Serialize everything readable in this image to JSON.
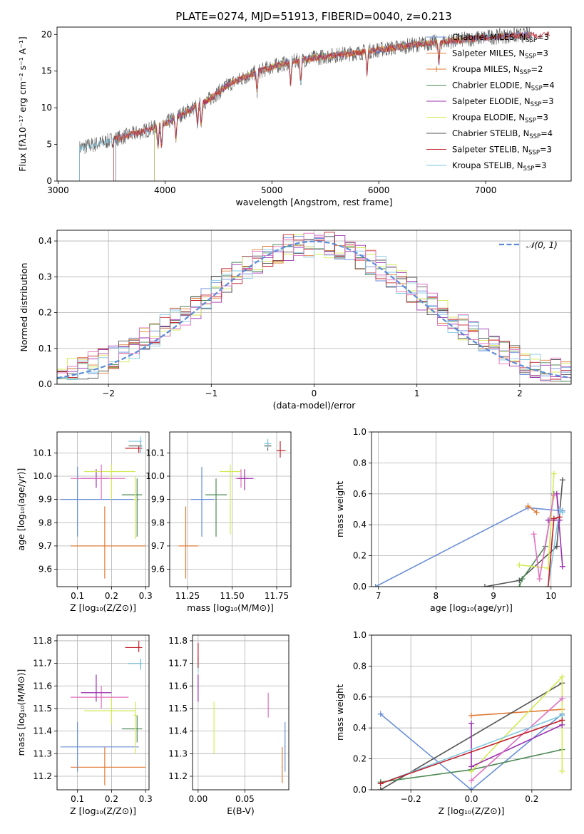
{
  "figure_title": "PLATE=0274, MJD=51913, FIBERID=0040, z=0.213",
  "colors": {
    "chabrier_miles": "#6a8fd8",
    "salpeter_miles": "#e07a35",
    "kroupa_miles": "#e07a35",
    "chabrier_elodie": "#4e8a55",
    "salpeter_elodie": "#9a30b0",
    "kroupa_elodie": "#d4ea55",
    "chabrier_stelib": "#555555",
    "salpeter_stelib": "#c0202a",
    "kroupa_stelib": "#80c8e0",
    "extra_pink": "#e070c0",
    "normal_curve": "#5b8bd8"
  },
  "chart_data": [
    {
      "id": "spectrum",
      "type": "line",
      "title": "PLATE=0274, MJD=51913, FIBERID=0040, z=0.213",
      "xlabel": "wavelength [Angstrom, rest frame]",
      "ylabel": "Flux [fλ10⁻¹⁷ erg cm⁻² s⁻¹ A⁻¹]",
      "xlim": [
        2990,
        7800
      ],
      "ylim": [
        0,
        21
      ],
      "xticks": [
        "3000",
        "4000",
        "5000",
        "6000",
        "7000"
      ],
      "yticks": [
        "0",
        "5",
        "10",
        "15",
        "20"
      ],
      "legend_position": "top-right",
      "legend": [
        "Chabrier MILES, N_SSP=3",
        "Salpeter MILES, N_SSP=3",
        "Kroupa MILES, N_SSP=2",
        "Chabrier ELODIE, N_SSP=4",
        "Salpeter ELODIE, N_SSP=3",
        "Kroupa ELODIE, N_SSP=3",
        "Chabrier STELIB, N_SSP=4",
        "Salpeter STELIB, N_SSP=3",
        "Kroupa STELIB, N_SSP=3"
      ],
      "x_continuum": [
        3200,
        3400,
        3600,
        3800,
        4000,
        4200,
        4400,
        4600,
        4800,
        5000,
        5200,
        5400,
        5600,
        5800,
        6000,
        6200,
        6400,
        6600,
        6800,
        7000,
        7200,
        7400,
        7600
      ],
      "y_continuum": [
        4.5,
        5.2,
        6.0,
        6.8,
        7.8,
        9.5,
        11.0,
        13.2,
        14.5,
        15.6,
        16.3,
        16.8,
        17.2,
        17.5,
        17.9,
        18.3,
        18.7,
        19.0,
        19.3,
        19.6,
        19.8,
        19.9,
        20.0
      ]
    },
    {
      "id": "residuals",
      "type": "bar",
      "xlabel": "(data-model)/error",
      "ylabel": "Normed distribution",
      "xlim": [
        -2.5,
        2.5
      ],
      "ylim": [
        0,
        0.43
      ],
      "xticks": [
        "−2",
        "−1",
        "0",
        "1",
        "2"
      ],
      "yticks": [
        "0.0",
        "0.1",
        "0.2",
        "0.3",
        "0.4"
      ],
      "legend": [
        "𝒩(0, 1)"
      ],
      "legend_position": "top-right",
      "bins": [
        -2.5,
        -2.4,
        -2.3,
        -2.2,
        -2.1,
        -2.0,
        -1.9,
        -1.8,
        -1.7,
        -1.6,
        -1.5,
        -1.4,
        -1.3,
        -1.2,
        -1.1,
        -1.0,
        -0.9,
        -0.8,
        -0.7,
        -0.6,
        -0.5,
        -0.4,
        -0.3,
        -0.2,
        -0.1,
        0.0,
        0.1,
        0.2,
        0.3,
        0.4,
        0.5,
        0.6,
        0.7,
        0.8,
        0.9,
        1.0,
        1.1,
        1.2,
        1.3,
        1.4,
        1.5,
        1.6,
        1.7,
        1.8,
        1.9,
        2.0,
        2.1,
        2.2,
        2.3,
        2.4
      ]
    },
    {
      "id": "age_vs_z",
      "type": "scatter",
      "xlabel": "Z [log₁₀(Z/Z⊙)]",
      "ylabel": "age  [log₁₀(age/yr)]",
      "xlim": [
        0.04,
        0.31
      ],
      "ylim": [
        9.525,
        10.19
      ],
      "xticks": [
        "0.1",
        "0.2",
        "0.3"
      ],
      "yticks": [
        "9.6",
        "9.7",
        "9.8",
        "9.9",
        "10.0",
        "10.1"
      ],
      "points": [
        {
          "x": 0.18,
          "y": 9.7,
          "xerr": [
            0.08,
            0.3
          ],
          "yerr": [
            9.56,
            9.87
          ],
          "c": "salpeter_miles"
        },
        {
          "x": 0.1,
          "y": 9.9,
          "xerr": [
            0.05,
            0.28
          ],
          "yerr": [
            9.74,
            10.04
          ],
          "c": "chabrier_miles"
        },
        {
          "x": 0.155,
          "y": 9.99,
          "xerr": [
            0.11,
            0.19
          ],
          "yerr": [
            9.95,
            10.03
          ],
          "c": "salpeter_elodie"
        },
        {
          "x": 0.2,
          "y": 10.02,
          "xerr": [
            0.12,
            0.27
          ],
          "yerr": [
            9.9,
            10.05
          ],
          "c": "kroupa_elodie"
        },
        {
          "x": 0.17,
          "y": 9.99,
          "xerr": [
            0.08,
            0.24
          ],
          "yerr": [
            9.9,
            10.05
          ],
          "c": "extra_pink"
        },
        {
          "x": 0.275,
          "y": 9.92,
          "xerr": [
            0.23,
            0.29
          ],
          "yerr": [
            9.74,
            9.99
          ],
          "c": "chabrier_elodie"
        },
        {
          "x": 0.27,
          "y": 9.9,
          "xerr": [
            0.265,
            0.275
          ],
          "yerr": [
            9.73,
            10.0
          ],
          "c": "kroupa_elodie"
        },
        {
          "x": 0.28,
          "y": 10.12,
          "xerr": [
            0.24,
            0.29
          ],
          "yerr": [
            10.1,
            10.13
          ],
          "c": "salpeter_stelib"
        },
        {
          "x": 0.285,
          "y": 10.13,
          "xerr": [
            0.25,
            0.29
          ],
          "yerr": [
            10.1,
            10.15
          ],
          "c": "chabrier_stelib"
        },
        {
          "x": 0.285,
          "y": 10.15,
          "xerr": [
            0.25,
            0.29
          ],
          "yerr": [
            10.1,
            10.17
          ],
          "c": "kroupa_stelib"
        }
      ]
    },
    {
      "id": "age_vs_mass",
      "type": "scatter",
      "xlabel": "mass [log₁₀(M/M⊙)]",
      "xlim": [
        11.15,
        11.83
      ],
      "ylim": [
        9.525,
        10.19
      ],
      "xticks": [
        "11.25",
        "11.50",
        "11.75"
      ],
      "yticks": [
        "9.6",
        "9.7",
        "9.8",
        "9.9",
        "10.0",
        "10.1"
      ],
      "points": [
        {
          "x": 11.24,
          "y": 9.7,
          "xerr": [
            11.2,
            11.31
          ],
          "yerr": [
            9.56,
            9.87
          ],
          "c": "salpeter_miles"
        },
        {
          "x": 11.33,
          "y": 9.9,
          "xerr": [
            11.27,
            11.4
          ],
          "yerr": [
            9.74,
            10.04
          ],
          "c": "chabrier_miles"
        },
        {
          "x": 11.41,
          "y": 9.92,
          "xerr": [
            11.35,
            11.47
          ],
          "yerr": [
            9.74,
            9.99
          ],
          "c": "chabrier_elodie"
        },
        {
          "x": 11.49,
          "y": 10.02,
          "xerr": [
            11.43,
            11.55
          ],
          "yerr": [
            9.75,
            10.05
          ],
          "c": "kroupa_elodie"
        },
        {
          "x": 11.55,
          "y": 9.99,
          "xerr": [
            11.52,
            11.59
          ],
          "yerr": [
            9.95,
            10.03
          ],
          "c": "extra_pink"
        },
        {
          "x": 11.57,
          "y": 9.99,
          "xerr": [
            11.53,
            11.62
          ],
          "yerr": [
            9.94,
            10.03
          ],
          "c": "salpeter_elodie"
        },
        {
          "x": 11.7,
          "y": 10.13,
          "xerr": [
            11.68,
            11.72
          ],
          "yerr": [
            10.11,
            10.15
          ],
          "c": "chabrier_stelib"
        },
        {
          "x": 11.7,
          "y": 10.14,
          "xerr": [
            11.68,
            11.72
          ],
          "yerr": [
            10.12,
            10.16
          ],
          "c": "kroupa_stelib"
        },
        {
          "x": 11.77,
          "y": 10.11,
          "xerr": [
            11.75,
            11.8
          ],
          "yerr": [
            10.08,
            10.15
          ],
          "c": "salpeter_stelib"
        }
      ]
    },
    {
      "id": "weight_vs_age",
      "type": "line",
      "xlabel": "age  [log₁₀(age/yr)]",
      "ylabel": "mass weight",
      "xlim": [
        6.88,
        10.35
      ],
      "ylim": [
        0,
        1
      ],
      "xticks": [
        "7",
        "8",
        "9",
        "10"
      ],
      "yticks": [
        "0.0",
        "0.2",
        "0.4",
        "0.6",
        "0.8",
        "1.0"
      ],
      "series": [
        {
          "c": "chabrier_miles",
          "x": [
            6.95,
            9.6,
            10.2
          ],
          "y": [
            0.0,
            0.51,
            0.49
          ]
        },
        {
          "c": "salpeter_miles",
          "x": [
            9.6,
            9.75
          ],
          "y": [
            0.52,
            0.48
          ]
        },
        {
          "c": "chabrier_stelib",
          "x": [
            8.85,
            9.45,
            10.1,
            10.2
          ],
          "y": [
            0.0,
            0.04,
            0.26,
            0.69
          ]
        },
        {
          "c": "chabrier_elodie",
          "x": [
            9.45,
            9.5,
            9.9,
            10.05
          ],
          "y": [
            0.0,
            0.05,
            0.26,
            0.6
          ]
        },
        {
          "c": "kroupa_elodie",
          "x": [
            9.45,
            9.95,
            10.05
          ],
          "y": [
            0.14,
            0.12,
            0.73
          ]
        },
        {
          "c": "salpeter_elodie",
          "x": [
            9.95,
            10.15,
            10.1,
            10.2
          ],
          "y": [
            0.43,
            0.43,
            0.6,
            0.13
          ]
        },
        {
          "c": "extra_pink",
          "x": [
            9.7,
            9.8,
            10.05
          ],
          "y": [
            0.34,
            0.05,
            0.59
          ]
        },
        {
          "c": "kroupa_stelib",
          "x": [
            9.95,
            10.15,
            10.2
          ],
          "y": [
            0.0,
            0.5,
            0.48
          ]
        },
        {
          "c": "salpeter_stelib",
          "x": [
            9.95,
            10.05,
            10.15
          ],
          "y": [
            0.0,
            0.44,
            0.45
          ]
        }
      ]
    },
    {
      "id": "mass_vs_z",
      "type": "scatter",
      "xlabel": "Z [log₁₀(Z/Z⊙)]",
      "ylabel": "mass [log₁₀(M/M⊙)]",
      "xlim": [
        0.04,
        0.31
      ],
      "ylim": [
        11.14,
        11.825
      ],
      "xticks": [
        "0.1",
        "0.2",
        "0.3"
      ],
      "yticks": [
        "11.2",
        "11.3",
        "11.4",
        "11.5",
        "11.6",
        "11.7",
        "11.8"
      ],
      "points": [
        {
          "x": 0.18,
          "y": 11.24,
          "xerr": [
            0.08,
            0.3
          ],
          "yerr": [
            11.16,
            11.33
          ],
          "c": "salpeter_miles"
        },
        {
          "x": 0.1,
          "y": 11.33,
          "xerr": [
            0.05,
            0.28
          ],
          "yerr": [
            11.22,
            11.44
          ],
          "c": "chabrier_miles"
        },
        {
          "x": 0.2,
          "y": 11.49,
          "xerr": [
            0.12,
            0.27
          ],
          "yerr": [
            11.43,
            11.55
          ],
          "c": "kroupa_elodie"
        },
        {
          "x": 0.17,
          "y": 11.55,
          "xerr": [
            0.08,
            0.25
          ],
          "yerr": [
            11.5,
            11.6
          ],
          "c": "extra_pink"
        },
        {
          "x": 0.155,
          "y": 11.57,
          "xerr": [
            0.11,
            0.2
          ],
          "yerr": [
            11.53,
            11.65
          ],
          "c": "salpeter_elodie"
        },
        {
          "x": 0.275,
          "y": 11.41,
          "xerr": [
            0.23,
            0.29
          ],
          "yerr": [
            11.35,
            11.47
          ],
          "c": "chabrier_elodie"
        },
        {
          "x": 0.27,
          "y": 11.47,
          "xerr": [
            0.265,
            0.275
          ],
          "yerr": [
            11.3,
            11.53
          ],
          "c": "kroupa_elodie"
        },
        {
          "x": 0.285,
          "y": 11.7,
          "xerr": [
            0.25,
            0.29
          ],
          "yerr": [
            11.68,
            11.72
          ],
          "c": "chabrier_stelib"
        },
        {
          "x": 0.285,
          "y": 11.7,
          "xerr": [
            0.25,
            0.29
          ],
          "yerr": [
            11.67,
            11.72
          ],
          "c": "kroupa_stelib"
        },
        {
          "x": 0.28,
          "y": 11.77,
          "xerr": [
            0.24,
            0.29
          ],
          "yerr": [
            11.75,
            11.8
          ],
          "c": "salpeter_stelib"
        }
      ]
    },
    {
      "id": "mass_vs_ebv",
      "type": "scatter",
      "xlabel": "E(B-V)",
      "xlim": [
        -0.006,
        0.097
      ],
      "ylim": [
        11.14,
        11.825
      ],
      "xticks": [
        "0.00",
        "0.05"
      ],
      "yticks": [
        "11.2",
        "11.3",
        "11.4",
        "11.5",
        "11.6",
        "11.7",
        "11.8"
      ],
      "points": [
        {
          "x": 0.0,
          "y": 11.7,
          "yerr": [
            11.66,
            11.74
          ],
          "c": "kroupa_stelib"
        },
        {
          "x": 0.0,
          "y": 11.72,
          "yerr": [
            11.68,
            11.79
          ],
          "c": "salpeter_stelib"
        },
        {
          "x": 0.0,
          "y": 11.6,
          "yerr": [
            11.53,
            11.65
          ],
          "c": "salpeter_elodie"
        },
        {
          "x": 0.017,
          "y": 11.41,
          "yerr": [
            11.3,
            11.53
          ],
          "c": "kroupa_elodie"
        },
        {
          "x": 0.075,
          "y": 11.5,
          "yerr": [
            11.46,
            11.57
          ],
          "c": "extra_pink"
        },
        {
          "x": 0.09,
          "y": 11.24,
          "yerr": [
            11.17,
            11.33
          ],
          "c": "salpeter_miles"
        },
        {
          "x": 0.093,
          "y": 11.33,
          "yerr": [
            11.22,
            11.44
          ],
          "c": "chabrier_miles"
        }
      ]
    },
    {
      "id": "weight_vs_z",
      "type": "line",
      "xlabel": "Z [log₁₀(Z/Z⊙)]",
      "ylabel": "mass weight",
      "xlim": [
        -0.33,
        0.33
      ],
      "ylim": [
        0,
        1
      ],
      "xticks": [
        "−0.2",
        "0.0",
        "0.2"
      ],
      "yticks": [
        "0.0",
        "0.2",
        "0.4",
        "0.6",
        "0.8",
        "1.0"
      ],
      "series": [
        {
          "c": "chabrier_miles",
          "x": [
            -0.3,
            0.0,
            0.3
          ],
          "y": [
            0.49,
            0.0,
            0.49
          ]
        },
        {
          "c": "salpeter_miles",
          "x": [
            0.0,
            0.3
          ],
          "y": [
            0.48,
            0.52
          ]
        },
        {
          "c": "chabrier_stelib",
          "x": [
            -0.3,
            0.3
          ],
          "y": [
            0.0,
            0.69
          ]
        },
        {
          "c": "chabrier_elodie",
          "x": [
            -0.3,
            0.0,
            0.3
          ],
          "y": [
            0.05,
            0.13,
            0.26
          ]
        },
        {
          "c": "kroupa_elodie",
          "x": [
            0.0,
            0.3,
            0.3
          ],
          "y": [
            0.12,
            0.73,
            0.12
          ]
        },
        {
          "c": "salpeter_elodie",
          "x": [
            0.0,
            0.0,
            0.3
          ],
          "y": [
            0.43,
            0.15,
            0.42
          ]
        },
        {
          "c": "extra_pink",
          "x": [
            0.0,
            0.3
          ],
          "y": [
            0.06,
            0.59
          ]
        },
        {
          "c": "kroupa_stelib",
          "x": [
            -0.3,
            0.3
          ],
          "y": [
            0.04,
            0.48
          ]
        },
        {
          "c": "salpeter_stelib",
          "x": [
            -0.3,
            0.3
          ],
          "y": [
            0.04,
            0.45
          ]
        }
      ]
    }
  ]
}
